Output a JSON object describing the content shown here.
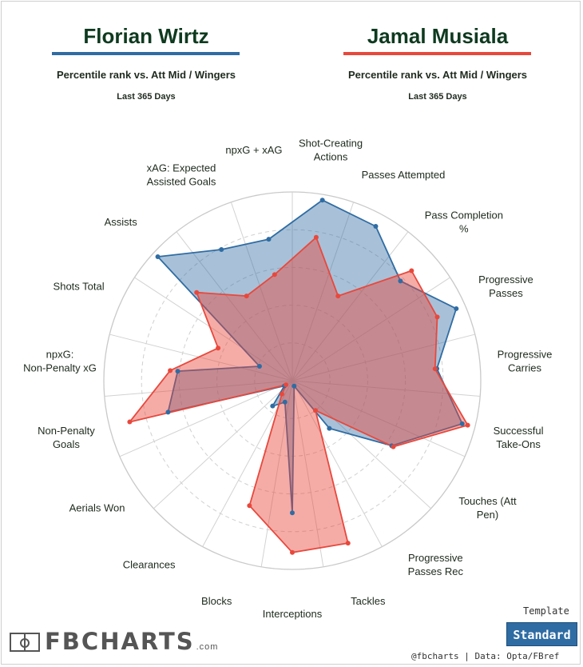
{
  "header": {
    "player1": {
      "name": "Florian Wirtz",
      "subtitle": "Percentile rank vs. Att Mid / Wingers",
      "period": "Last 365 Days"
    },
    "player2": {
      "name": "Jamal Musiala",
      "subtitle": "Percentile rank vs. Att Mid / Wingers",
      "period": "Last 365 Days"
    }
  },
  "colors": {
    "player1": "#2f6ca3",
    "player2": "#e8483c"
  },
  "chart_data": {
    "type": "radar",
    "range": [
      0,
      100
    ],
    "rings": [
      20,
      40,
      60,
      80,
      100
    ],
    "categories": [
      "Shot-Creating Actions",
      "Passes Attempted",
      "Pass Completion %",
      "Progressive Passes",
      "Progressive Carries",
      "Successful Take-Ons",
      "Touches (Att Pen)",
      "Progressive Passes Rec",
      "Tackles",
      "Interceptions",
      "Blocks",
      "Clearances",
      "Aerials Won",
      "Non-Penalty Goals",
      "npxG: Non-Penalty xG",
      "Shots Total",
      "Assists",
      "xAG: Expected Assisted Goals",
      "npxG + xAG"
    ],
    "series": [
      {
        "name": "Florian Wirtz",
        "values": [
          97,
          93,
          78,
          95,
          77,
          93,
          63,
          32,
          3,
          70,
          12,
          17,
          5,
          68,
          61,
          19,
          97,
          79,
          76
        ]
      },
      {
        "name": "Jamal Musiala",
        "values": [
          77,
          51,
          86,
          84,
          76,
          96,
          64,
          20,
          91,
          91,
          70,
          9,
          4,
          89,
          65,
          43,
          69,
          51,
          57
        ]
      }
    ]
  },
  "footer": {
    "template_label": "Template",
    "template_value": "Standard",
    "credit": "@fbcharts | Data: Opta/FBref",
    "logo_text": "FBCHARTS",
    "logo_suffix": ".com"
  }
}
